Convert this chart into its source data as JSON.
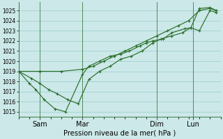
{
  "background_color": "#cce8e8",
  "grid_color": "#99cccc",
  "line_color": "#2a6e2a",
  "marker_color": "#2a6e2a",
  "xlabel": "Pression niveau de la mer( hPa )",
  "ylim": [
    1014.5,
    1025.8
  ],
  "yticks": [
    1015,
    1016,
    1017,
    1018,
    1019,
    1020,
    1021,
    1022,
    1023,
    1024,
    1025
  ],
  "xtick_labels": [
    "Sam",
    "Mar",
    "Dim",
    "Lun"
  ],
  "xtick_positions": [
    1.0,
    3.0,
    6.5,
    8.2
  ],
  "xlim": [
    0,
    9.5
  ],
  "series1_x": [
    0.0,
    0.5,
    0.8,
    1.2,
    1.7,
    2.2,
    3.0,
    3.3,
    3.8,
    4.3,
    4.8,
    5.2,
    5.7,
    6.0,
    6.3,
    6.8,
    7.2,
    7.8,
    8.1,
    8.5,
    9.0,
    9.3
  ],
  "series1_y": [
    1019.0,
    1017.8,
    1017.2,
    1016.2,
    1015.3,
    1015.0,
    1018.7,
    1019.5,
    1020.0,
    1020.5,
    1020.7,
    1021.0,
    1021.5,
    1021.8,
    1022.0,
    1022.2,
    1022.8,
    1023.2,
    1023.3,
    1025.2,
    1025.3,
    1025.0
  ],
  "series2_x": [
    0.0,
    1.0,
    2.0,
    3.0,
    3.5,
    4.0,
    4.5,
    5.0,
    5.5,
    6.0,
    6.5,
    7.0,
    7.5,
    8.0,
    8.5,
    9.0,
    9.3
  ],
  "series2_y": [
    1019.0,
    1019.0,
    1019.0,
    1019.2,
    1019.5,
    1020.0,
    1020.5,
    1021.0,
    1021.5,
    1022.0,
    1022.5,
    1023.0,
    1023.5,
    1024.0,
    1025.0,
    1025.2,
    1025.0
  ],
  "series3_x": [
    0.0,
    0.6,
    1.0,
    1.4,
    1.8,
    2.3,
    2.8,
    3.3,
    3.8,
    4.3,
    4.8,
    5.3,
    5.8,
    6.3,
    6.7,
    7.2,
    7.7,
    8.1,
    8.5,
    9.0,
    9.3
  ],
  "series3_y": [
    1019.0,
    1018.3,
    1017.8,
    1017.2,
    1016.8,
    1016.2,
    1015.8,
    1018.2,
    1019.0,
    1019.5,
    1020.2,
    1020.5,
    1021.0,
    1021.8,
    1022.2,
    1022.5,
    1022.8,
    1023.3,
    1023.0,
    1025.0,
    1024.8
  ],
  "vline_x0": 0.0,
  "vline_color": "#3a7a3a",
  "figsize": [
    3.2,
    2.0
  ],
  "dpi": 100
}
